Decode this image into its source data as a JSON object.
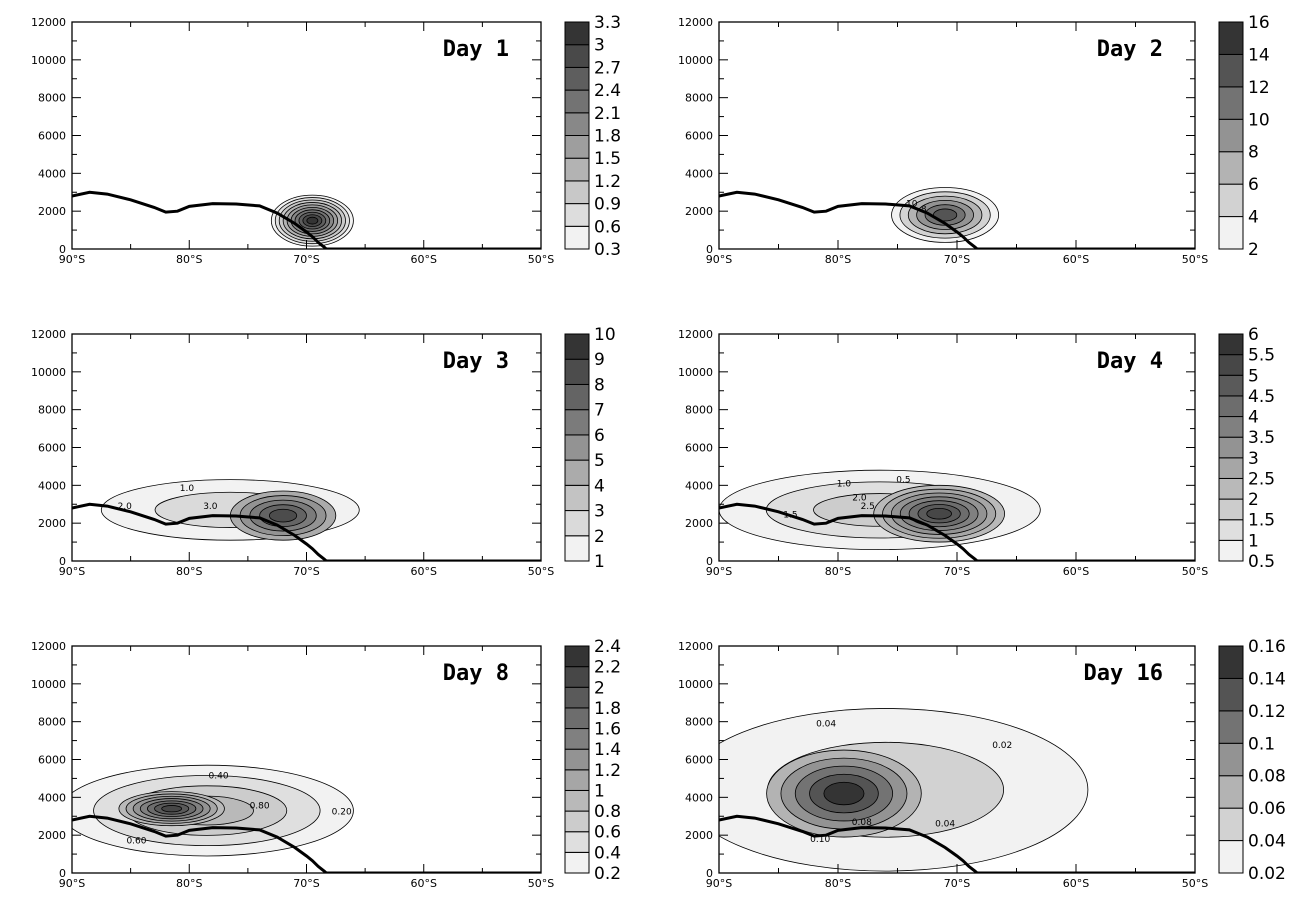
{
  "chart_data": [
    {
      "type": "contour",
      "title": "Day 1",
      "x_ticks": [
        "90°S",
        "80°S",
        "70°S",
        "60°S",
        "50°S"
      ],
      "x_range": [
        -90,
        -50
      ],
      "y_ticks": [
        "0",
        "2000",
        "4000",
        "6000",
        "8000",
        "10000",
        "12000"
      ],
      "y_range": [
        0,
        12000
      ],
      "colorbar": [
        "0.3",
        "0.6",
        "0.9",
        "1.2",
        "1.5",
        "1.8",
        "2.1",
        "2.4",
        "2.7",
        "3",
        "3.3"
      ],
      "contour_labels": [],
      "blobs": [
        {
          "cx": -69.5,
          "cy": 1500,
          "rx": 3.5,
          "ry": 1350,
          "peak": 10
        }
      ]
    },
    {
      "type": "contour",
      "title": "Day 2",
      "x_ticks": [
        "90°S",
        "80°S",
        "70°S",
        "60°S",
        "50°S"
      ],
      "x_range": [
        -90,
        -50
      ],
      "y_ticks": [
        "0",
        "2000",
        "4000",
        "6000",
        "8000",
        "10000",
        "12000"
      ],
      "y_range": [
        0,
        12000
      ],
      "colorbar": [
        "2",
        "4",
        "6",
        "8",
        "10",
        "12",
        "14",
        "16"
      ],
      "contour_labels": [
        {
          "text": "10",
          "x": -73.8,
          "y": 2250
        },
        {
          "text": "8",
          "x": -72.8,
          "y": 1950
        }
      ],
      "blobs": [
        {
          "cx": -71.0,
          "cy": 1800,
          "rx": 4.5,
          "ry": 1450,
          "peak": 6
        }
      ]
    },
    {
      "type": "contour",
      "title": "Day 3",
      "x_ticks": [
        "90°S",
        "80°S",
        "70°S",
        "60°S",
        "50°S"
      ],
      "x_range": [
        -90,
        -50
      ],
      "y_ticks": [
        "0",
        "2000",
        "4000",
        "6000",
        "8000",
        "10000",
        "12000"
      ],
      "y_range": [
        0,
        12000
      ],
      "colorbar": [
        "1",
        "2",
        "3",
        "4",
        "5",
        "6",
        "7",
        "8",
        "9",
        "10"
      ],
      "contour_labels": [
        {
          "text": "1.0",
          "x": -80.2,
          "y": 3700
        },
        {
          "text": "2.0",
          "x": -85.5,
          "y": 2750
        },
        {
          "text": "3.0",
          "x": -78.2,
          "y": 2750
        }
      ],
      "blobs": [
        {
          "cx": -76.5,
          "cy": 2700,
          "rx": 11.0,
          "ry": 1600,
          "peak": 2
        },
        {
          "cx": -72.0,
          "cy": 2400,
          "rx": 4.5,
          "ry": 1300,
          "peak": 5
        }
      ]
    },
    {
      "type": "contour",
      "title": "Day 4",
      "x_ticks": [
        "90°S",
        "80°S",
        "70°S",
        "60°S",
        "50°S"
      ],
      "x_range": [
        -90,
        -50
      ],
      "y_ticks": [
        "0",
        "2000",
        "4000",
        "6000",
        "8000",
        "10000",
        "12000"
      ],
      "y_range": [
        0,
        12000
      ],
      "colorbar": [
        "0.5",
        "1",
        "1.5",
        "2",
        "2.5",
        "3",
        "3.5",
        "4",
        "4.5",
        "5",
        "5.5",
        "6"
      ],
      "contour_labels": [
        {
          "text": "0.5",
          "x": -74.5,
          "y": 4150
        },
        {
          "text": "1.0",
          "x": -79.5,
          "y": 3950
        },
        {
          "text": "1.5",
          "x": -84.0,
          "y": 2300
        },
        {
          "text": "2.0",
          "x": -78.2,
          "y": 3200
        },
        {
          "text": "2.5",
          "x": -77.5,
          "y": 2750
        }
      ],
      "blobs": [
        {
          "cx": -76.5,
          "cy": 2700,
          "rx": 13.5,
          "ry": 2100,
          "peak": 3
        },
        {
          "cx": -71.5,
          "cy": 2500,
          "rx": 5.5,
          "ry": 1500,
          "peak": 7
        }
      ]
    },
    {
      "type": "contour",
      "title": "Day 8",
      "x_ticks": [
        "90°S",
        "80°S",
        "70°S",
        "60°S",
        "50°S"
      ],
      "x_range": [
        -90,
        -50
      ],
      "y_ticks": [
        "0",
        "2000",
        "4000",
        "6000",
        "8000",
        "10000",
        "12000"
      ],
      "y_range": [
        0,
        12000
      ],
      "colorbar": [
        "0.2",
        "0.4",
        "0.6",
        "0.8",
        "1",
        "1.2",
        "1.4",
        "1.6",
        "1.8",
        "2",
        "2.2",
        "2.4"
      ],
      "contour_labels": [
        {
          "text": "0.40",
          "x": -77.5,
          "y": 5000
        },
        {
          "text": "0.80",
          "x": -74.0,
          "y": 3400
        },
        {
          "text": "0.60",
          "x": -84.5,
          "y": 1550
        },
        {
          "text": "0.20",
          "x": -67.0,
          "y": 3100
        }
      ],
      "blobs": [
        {
          "cx": -78.5,
          "cy": 3300,
          "rx": 12.5,
          "ry": 2400,
          "peak": 4
        },
        {
          "cx": -81.5,
          "cy": 3400,
          "rx": 4.5,
          "ry": 900,
          "peak": 7
        }
      ]
    },
    {
      "type": "contour",
      "title": "Day 16",
      "x_ticks": [
        "90°S",
        "80°S",
        "70°S",
        "60°S",
        "50°S"
      ],
      "x_range": [
        -90,
        -50
      ],
      "y_ticks": [
        "0",
        "2000",
        "4000",
        "6000",
        "8000",
        "10000",
        "12000"
      ],
      "y_range": [
        0,
        12000
      ],
      "colorbar": [
        "0.02",
        "0.04",
        "0.06",
        "0.08",
        "0.1",
        "0.12",
        "0.14",
        "0.16"
      ],
      "contour_labels": [
        {
          "text": "0.04",
          "x": -81.0,
          "y": 7750
        },
        {
          "text": "0.02",
          "x": -66.2,
          "y": 6600
        },
        {
          "text": "0.10",
          "x": -81.5,
          "y": 1650
        },
        {
          "text": "0.04",
          "x": -71.0,
          "y": 2450
        },
        {
          "text": "0.08",
          "x": -78.0,
          "y": 2550
        }
      ],
      "blobs": [
        {
          "cx": -76.0,
          "cy": 4400,
          "rx": 17.0,
          "ry": 4300,
          "peak": 2
        },
        {
          "cx": -79.5,
          "cy": 4200,
          "rx": 6.5,
          "ry": 2300,
          "peak": 5
        }
      ]
    }
  ],
  "topography": {
    "lat": [
      -90,
      -88.5,
      -87,
      -85,
      -83,
      -82,
      -81,
      -80,
      -78,
      -76,
      -74,
      -72.5,
      -71,
      -70,
      -69.5,
      -69,
      -68.5,
      -68.3,
      -66,
      -60,
      -55,
      -50
    ],
    "height": [
      2800,
      3000,
      2900,
      2600,
      2200,
      1950,
      2000,
      2250,
      2400,
      2380,
      2280,
      1900,
      1350,
      900,
      650,
      350,
      100,
      0,
      0,
      0,
      0,
      0
    ]
  }
}
